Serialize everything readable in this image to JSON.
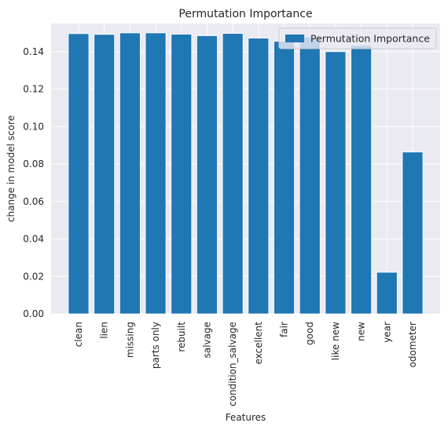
{
  "chart_data": {
    "type": "bar",
    "title": "Permutation Importance",
    "xlabel": "Features",
    "ylabel": "change in model score",
    "categories": [
      "clean",
      "lien",
      "missing",
      "parts only",
      "rebuilt",
      "salvage",
      "condition_salvage",
      "excellent",
      "fair",
      "good",
      "like new",
      "new",
      "year",
      "odometer"
    ],
    "series": [
      {
        "name": "Permutation Importance",
        "values": [
          0.1496,
          0.1492,
          0.15,
          0.15,
          0.1493,
          0.1485,
          0.1497,
          0.1472,
          0.1455,
          0.1478,
          0.14,
          0.1433,
          0.0222,
          0.0864
        ]
      }
    ],
    "ylim": [
      0,
      0.155
    ],
    "yticks": [
      0.0,
      0.02,
      0.04,
      0.06,
      0.08,
      0.1,
      0.12,
      0.14
    ],
    "ytick_labels": [
      "0.00",
      "0.02",
      "0.04",
      "0.06",
      "0.08",
      "0.10",
      "0.12",
      "0.14"
    ],
    "grid": true,
    "legend_position": "top-right",
    "colors": {
      "bar": "#1f77b4",
      "plot_background": "#eaeaf2",
      "grid": "#ffffff",
      "bar_edge": "#ffffff"
    }
  }
}
